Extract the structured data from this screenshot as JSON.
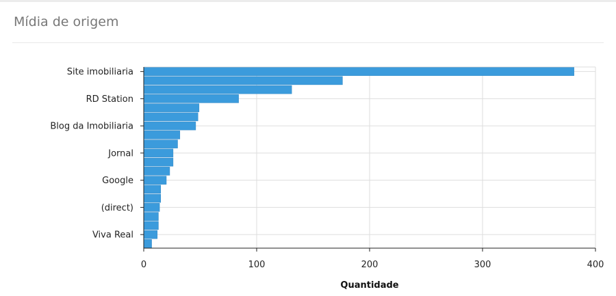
{
  "panel": {
    "title": "Mídia de origem"
  },
  "colors": {
    "bar": "#3b9bdc",
    "bar_edge": "#2f86c4",
    "grid": "#dddddd",
    "axis": "#222222"
  },
  "chart_data": {
    "type": "bar",
    "orientation": "horizontal",
    "categories": [
      "Site imobiliaria",
      "",
      "",
      "RD Station",
      "",
      "",
      "Blog da Imobiliaria",
      "",
      "",
      "Jornal",
      "",
      "",
      "Google",
      "",
      "",
      "(direct)",
      "",
      "",
      "Viva Real",
      ""
    ],
    "values": [
      381,
      176,
      131,
      84,
      49,
      48,
      46,
      32,
      30,
      26,
      26,
      23,
      20,
      15,
      15,
      14,
      13,
      13,
      12,
      7
    ],
    "xlabel": "Quantidade",
    "ylabel": "",
    "xlim": [
      0,
      400
    ],
    "x_ticks": [
      0,
      100,
      200,
      300,
      400
    ],
    "grid": true
  }
}
